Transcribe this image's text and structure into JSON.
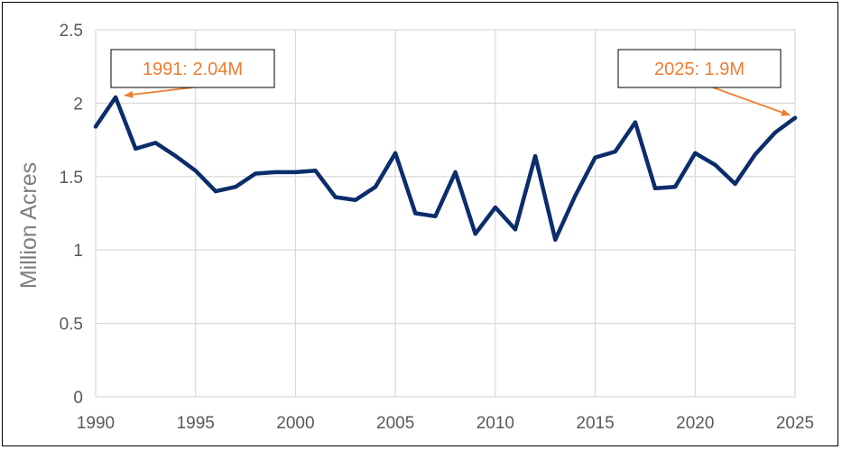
{
  "chart_data": {
    "type": "line",
    "title": "",
    "xlabel": "",
    "ylabel": "Million Acres",
    "xlim": [
      1990,
      2025
    ],
    "ylim": [
      0,
      2.5
    ],
    "x_ticks": [
      "1990",
      "1995",
      "2000",
      "2005",
      "2010",
      "2015",
      "2020",
      "2025"
    ],
    "y_ticks": [
      "0",
      "0.5",
      "1",
      "1.5",
      "2",
      "2.5"
    ],
    "grid": true,
    "colors": {
      "line": "#0b2d6b",
      "grid": "#d9d9d9",
      "annotation": "#ed7d31"
    },
    "series": [
      {
        "x": [
          1990,
          1991,
          1992,
          1993,
          1994,
          1995,
          1996,
          1997,
          1998,
          1999,
          2000,
          2001,
          2002,
          2003,
          2004,
          2005,
          2006,
          2007,
          2008,
          2009,
          2010,
          2011,
          2012,
          2013,
          2014,
          2015,
          2016,
          2017,
          2018,
          2019,
          2020,
          2021,
          2022,
          2023,
          2024,
          2025
        ],
        "values": [
          1.84,
          2.04,
          1.69,
          1.73,
          1.64,
          1.54,
          1.4,
          1.43,
          1.52,
          1.53,
          1.53,
          1.54,
          1.36,
          1.34,
          1.43,
          1.66,
          1.25,
          1.23,
          1.53,
          1.11,
          1.29,
          1.14,
          1.64,
          1.07,
          1.37,
          1.63,
          1.67,
          1.87,
          1.42,
          1.43,
          1.66,
          1.58,
          1.45,
          1.65,
          1.8,
          1.9
        ]
      }
    ],
    "annotations": [
      {
        "text": "1991: 2.04M",
        "x": 1991,
        "y": 2.04
      },
      {
        "text": "2025: 1.9M",
        "x": 2025,
        "y": 1.9
      }
    ]
  }
}
